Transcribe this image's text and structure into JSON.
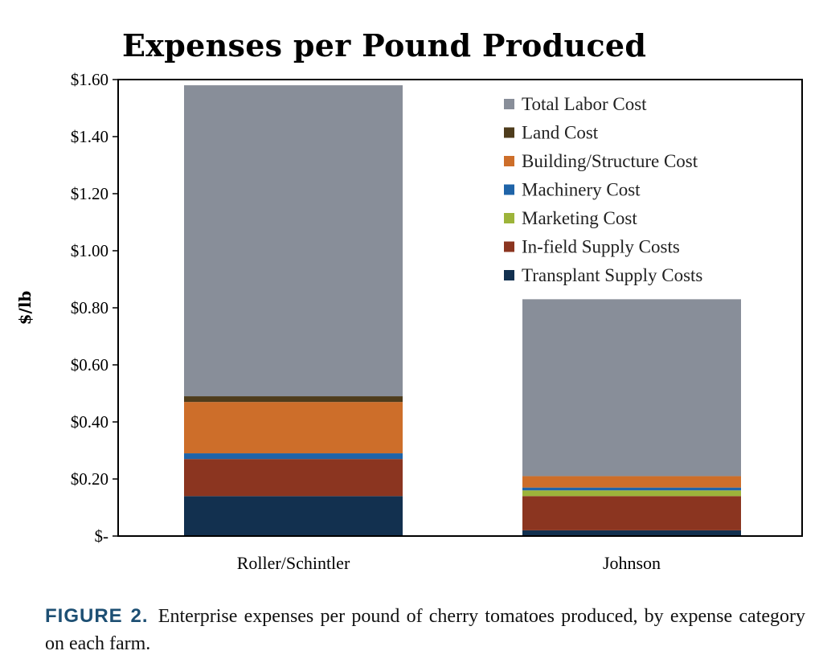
{
  "chart_data": {
    "type": "bar",
    "stacked": true,
    "title": "Expenses per Pound Produced",
    "ylabel": "$/lb",
    "xlabel": "",
    "ylim": [
      0,
      1.6
    ],
    "yticks": [
      0,
      0.2,
      0.4,
      0.6,
      0.8,
      1.0,
      1.2,
      1.4,
      1.6
    ],
    "ytick_labels": [
      "$-",
      "$0.20",
      "$0.40",
      "$0.60",
      "$0.80",
      "$1.00",
      "$1.20",
      "$1.40",
      "$1.60"
    ],
    "categories": [
      "Roller/Schintler",
      "Johnson"
    ],
    "legend_position": "top-right",
    "series": [
      {
        "name": "Transplant Supply Costs",
        "color": "#12304f",
        "values": [
          0.14,
          0.02
        ]
      },
      {
        "name": "In-field Supply Costs",
        "color": "#8b3520",
        "values": [
          0.13,
          0.12
        ]
      },
      {
        "name": "Marketing Cost",
        "color": "#9db43a",
        "values": [
          0.0,
          0.02
        ]
      },
      {
        "name": "Machinery Cost",
        "color": "#1f64a8",
        "values": [
          0.02,
          0.01
        ]
      },
      {
        "name": "Building/Structure Cost",
        "color": "#cd6e2a",
        "values": [
          0.18,
          0.04
        ]
      },
      {
        "name": "Land Cost",
        "color": "#4e3c1c",
        "values": [
          0.02,
          0.0
        ]
      },
      {
        "name": "Total Labor Cost",
        "color": "#888e99",
        "values": [
          1.09,
          0.62
        ]
      }
    ]
  },
  "caption": {
    "label": "FIGURE 2.",
    "text": "Enterprise expenses per pound of cherry tomatoes produced, by expense category on each farm."
  }
}
